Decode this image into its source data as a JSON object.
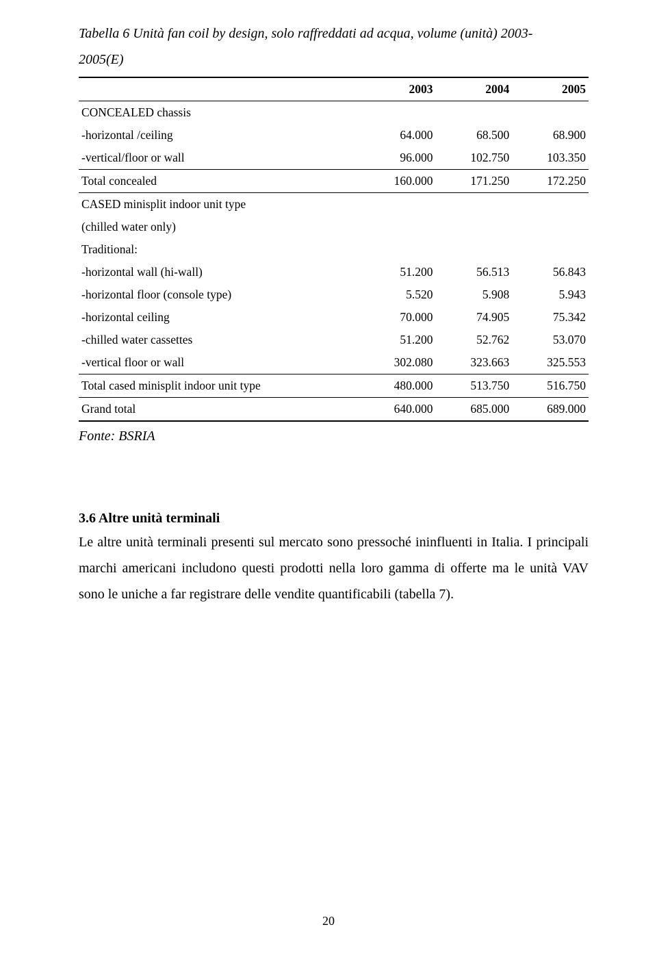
{
  "table": {
    "title_line1": "Tabella 6  Unità fan coil by design, solo raffreddati ad acqua, volume (unità) 2003-",
    "title_line2": "2005(E)",
    "years": [
      "2003",
      "2004",
      "2005"
    ],
    "rows": [
      {
        "label": "CONCEALED chassis",
        "v": [
          "",
          "",
          ""
        ],
        "section": "top"
      },
      {
        "label": "-horizontal /ceiling",
        "v": [
          "64.000",
          "68.500",
          "68.900"
        ]
      },
      {
        "label": "-vertical/floor or wall",
        "v": [
          "96.000",
          "102.750",
          "103.350"
        ]
      },
      {
        "label": "Total concealed",
        "v": [
          "160.000",
          "171.250",
          "172.250"
        ],
        "section": "top"
      },
      {
        "label": "CASED minisplit indoor unit type",
        "v": [
          "",
          "",
          ""
        ],
        "section": "top"
      },
      {
        "label": "(chilled water only)",
        "v": [
          "",
          "",
          ""
        ]
      },
      {
        "label": "Traditional:",
        "v": [
          "",
          "",
          ""
        ]
      },
      {
        "label": "-horizontal wall (hi-wall)",
        "v": [
          "51.200",
          "56.513",
          "56.843"
        ]
      },
      {
        "label": "-horizontal floor (console type)",
        "v": [
          "5.520",
          "5.908",
          "5.943"
        ]
      },
      {
        "label": "-horizontal ceiling",
        "v": [
          "70.000",
          "74.905",
          "75.342"
        ]
      },
      {
        "label": "-chilled water cassettes",
        "v": [
          "51.200",
          "52.762",
          "53.070"
        ]
      },
      {
        "label": "-vertical floor or wall",
        "v": [
          "302.080",
          "323.663",
          "325.553"
        ]
      },
      {
        "label": "Total cased minisplit indoor unit type",
        "v": [
          "480.000",
          "513.750",
          "516.750"
        ],
        "section": "top"
      },
      {
        "label": "Grand total",
        "v": [
          "640.000",
          "685.000",
          "689.000"
        ],
        "section": "grand"
      }
    ],
    "source": "Fonte: BSRIA"
  },
  "section": {
    "heading": "3.6  Altre unità terminali",
    "paragraph": "Le altre unità terminali presenti sul mercato sono pressoché ininfluenti in Italia. I principali marchi americani includono questi prodotti nella loro gamma di offerte ma le unità VAV sono le uniche a far registrare delle vendite quantificabili (tabella 7)."
  },
  "page_number": "20"
}
